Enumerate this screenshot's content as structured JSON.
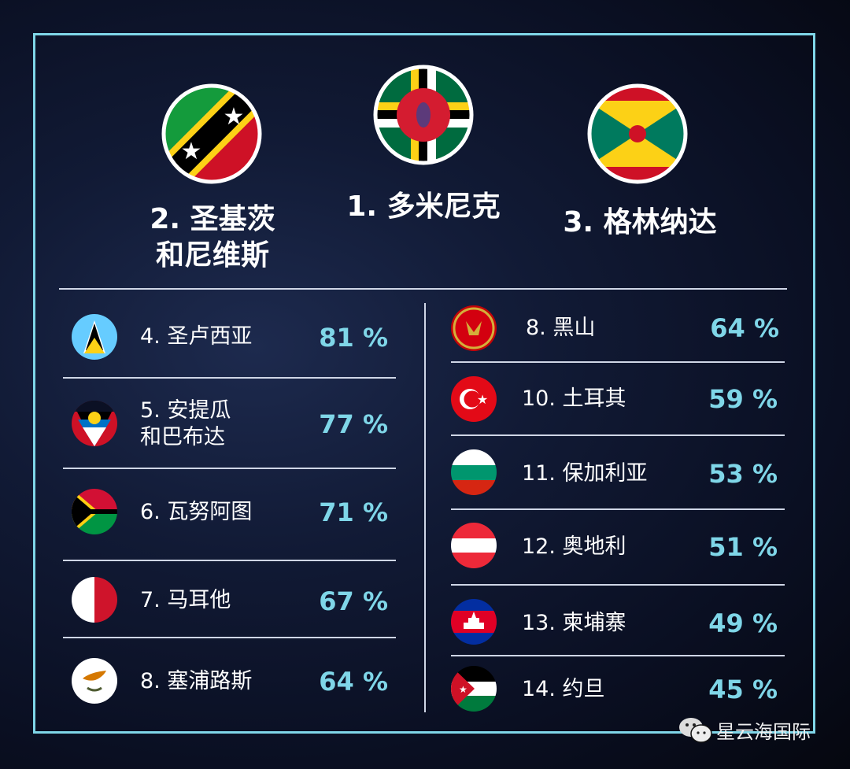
{
  "top3": [
    {
      "rank_label": "2. 圣基茨\n和尼维斯",
      "flag": "saint-kitts-and-nevis-flag"
    },
    {
      "rank_label": "1. 多米尼克",
      "flag": "dominica-flag"
    },
    {
      "rank_label": "3. 格林纳达",
      "flag": "grenada-flag"
    }
  ],
  "left": [
    {
      "name": "4. 圣卢西亚",
      "pct": "81 %",
      "flag": "saint-lucia-flag"
    },
    {
      "name": "5. 安提瓜\n    和巴布达",
      "pct": "77 %",
      "flag": "antigua-and-barbuda-flag"
    },
    {
      "name": "6. 瓦努阿图",
      "pct": "71 %",
      "flag": "vanuatu-flag"
    },
    {
      "name": "7. 马耳他",
      "pct": "67 %",
      "flag": "malta-flag"
    },
    {
      "name": "8. 塞浦路斯",
      "pct": "64 %",
      "flag": "cyprus-flag"
    }
  ],
  "right": [
    {
      "name": "8. 黑山",
      "pct": "64 %",
      "flag": "montenegro-flag"
    },
    {
      "name": "10. 土耳其",
      "pct": "59 %",
      "flag": "turkey-flag"
    },
    {
      "name": "11. 保加利亚",
      "pct": "53 %",
      "flag": "bulgaria-flag"
    },
    {
      "name": "12. 奥地利",
      "pct": "51 %",
      "flag": "austria-flag"
    },
    {
      "name": "13. 柬埔寨",
      "pct": "49 %",
      "flag": "cambodia-flag"
    },
    {
      "name": "14. 约旦",
      "pct": "45 %",
      "flag": "jordan-flag"
    }
  ],
  "brand": {
    "name": "星云海国际",
    "icon": "wechat-icon"
  },
  "colors": {
    "accent": "#7fd6e8",
    "frame": "#7fd6e8"
  }
}
